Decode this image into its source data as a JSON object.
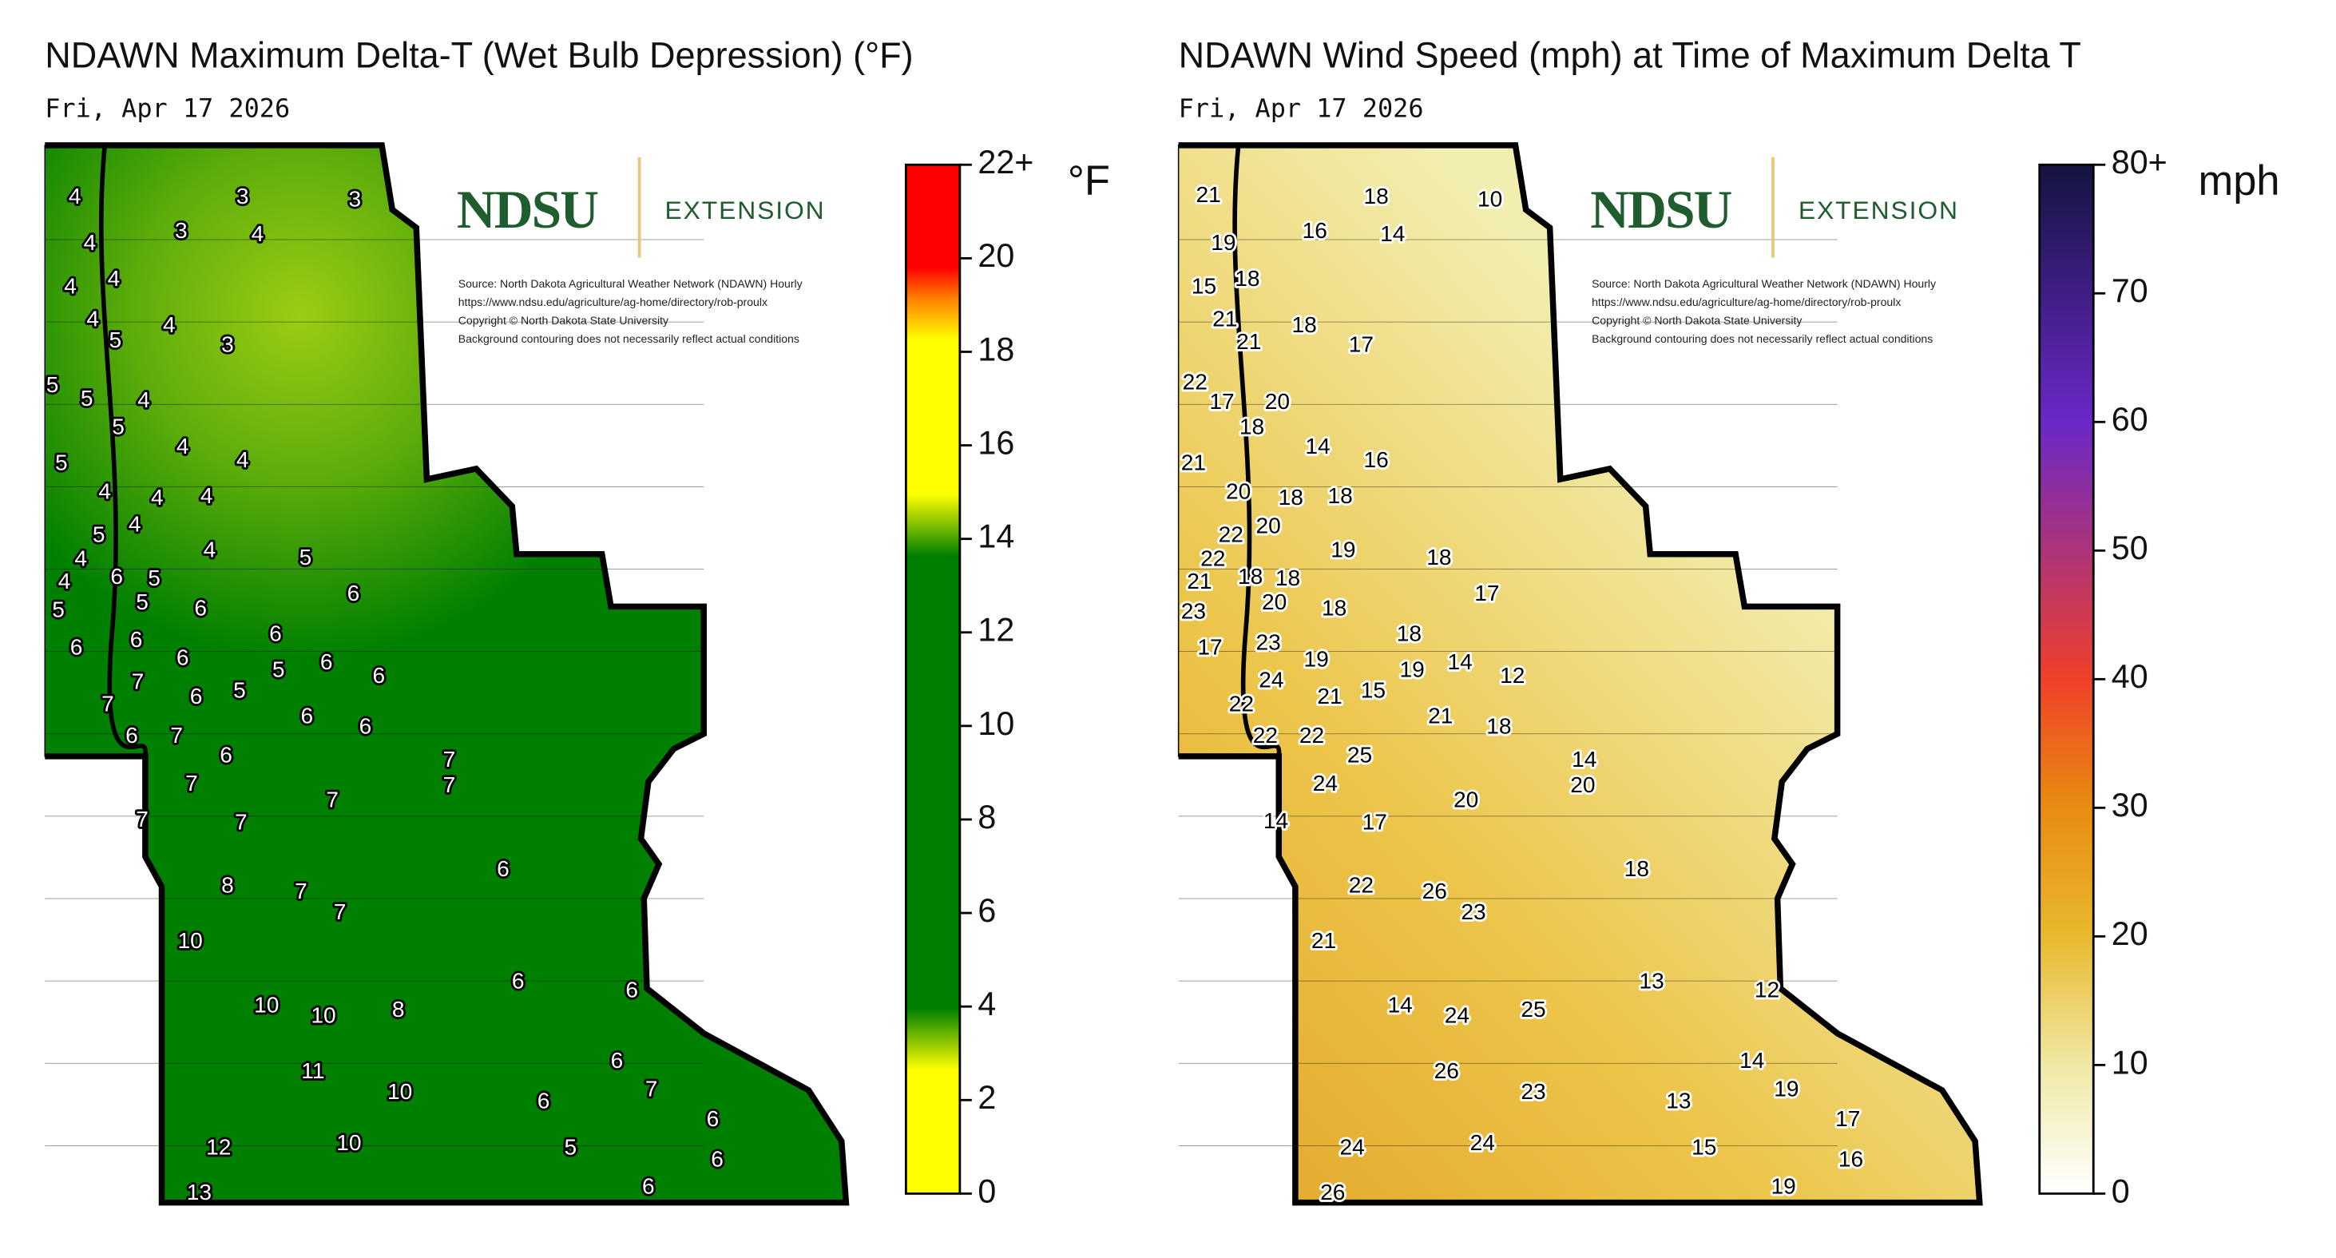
{
  "maps": [
    {
      "title": "NDAWN Maximum Delta-T (Wet Bulb Depression) (°F)",
      "date": "Fri, Apr 17 2026",
      "logo": "NDSU",
      "logo_sub": "EXTENSION",
      "source_lines": [
        "Source: North Dakota Agricultural Weather Network (NDAWN) Hourly",
        "https://www.ndsu.edu/agriculture/ag-home/directory/rob-proulx",
        "Copyright © North Dakota State University",
        "Background contouring does not necessarily reflect actual conditions"
      ],
      "colorbar": {
        "unit": "°F",
        "lim": [
          0,
          22
        ],
        "ticks": [
          0,
          2,
          4,
          6,
          8,
          10,
          12,
          14,
          16,
          18,
          20,
          {
            "value": 22,
            "label": "22+"
          }
        ]
      },
      "stations": [
        4,
        3,
        3,
        4,
        3,
        4,
        4,
        4,
        4,
        5,
        4,
        3,
        5,
        5,
        4,
        5,
        4,
        4,
        5,
        4,
        4,
        4,
        5,
        4,
        4,
        4,
        5,
        4,
        6,
        5,
        5,
        5,
        6,
        6,
        6,
        6,
        6,
        6,
        7,
        6,
        5,
        5,
        6,
        6,
        7,
        6,
        7,
        6,
        6,
        6,
        7,
        7,
        7,
        7,
        7,
        7,
        6,
        8,
        7,
        7,
        10,
        6,
        6,
        10,
        10,
        8,
        11,
        6,
        7,
        10,
        6,
        6,
        12,
        10,
        5,
        6,
        13,
        6
      ]
    },
    {
      "title": "NDAWN Wind Speed (mph) at Time of Maximum Delta T",
      "date": "Fri, Apr 17 2026",
      "logo": "NDSU",
      "logo_sub": "EXTENSION",
      "source_lines": [
        "Source: North Dakota Agricultural Weather Network (NDAWN) Hourly",
        "https://www.ndsu.edu/agriculture/ag-home/directory/rob-proulx",
        "Copyright © North Dakota State University",
        "Background contouring does not necessarily reflect actual conditions"
      ],
      "colorbar": {
        "unit": "mph",
        "lim": [
          0,
          80
        ],
        "ticks": [
          0,
          10,
          20,
          30,
          40,
          50,
          60,
          70,
          {
            "value": 80,
            "label": "80+"
          }
        ]
      },
      "stations": [
        21,
        18,
        10,
        16,
        14,
        19,
        18,
        15,
        21,
        21,
        18,
        17,
        22,
        17,
        20,
        18,
        14,
        16,
        21,
        20,
        18,
        18,
        22,
        20,
        22,
        19,
        18,
        21,
        18,
        18,
        23,
        20,
        18,
        17,
        17,
        23,
        18,
        19,
        24,
        14,
        12,
        19,
        22,
        21,
        15,
        21,
        18,
        22,
        22,
        25,
        14,
        24,
        20,
        20,
        14,
        17,
        18,
        22,
        26,
        23,
        21,
        13,
        12,
        14,
        24,
        25,
        26,
        14,
        19,
        23,
        13,
        17,
        24,
        24,
        15,
        16,
        26,
        19
      ]
    }
  ]
}
